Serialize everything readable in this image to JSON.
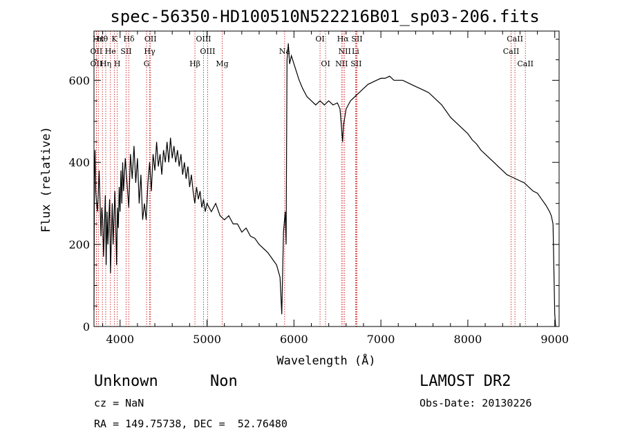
{
  "chart_data": {
    "type": "line",
    "title": "spec-56350-HD100510N522216B01_sp03-206.fits",
    "xlabel": "Wavelength (Å)",
    "ylabel": "Flux (relative)",
    "xlim": [
      3700,
      9050
    ],
    "ylim": [
      0,
      720
    ],
    "xticks": [
      4000,
      5000,
      6000,
      7000,
      8000,
      9000
    ],
    "yticks": [
      0,
      200,
      400,
      600
    ],
    "grid": false,
    "series": [
      {
        "points": [
          [
            3700,
            40
          ],
          [
            3705,
            360
          ],
          [
            3712,
            430
          ],
          [
            3720,
            330
          ],
          [
            3730,
            300
          ],
          [
            3740,
            280
          ],
          [
            3750,
            330
          ],
          [
            3760,
            380
          ],
          [
            3770,
            300
          ],
          [
            3780,
            220
          ],
          [
            3790,
            290
          ],
          [
            3800,
            260
          ],
          [
            3810,
            170
          ],
          [
            3820,
            240
          ],
          [
            3830,
            320
          ],
          [
            3840,
            150
          ],
          [
            3850,
            280
          ],
          [
            3860,
            200
          ],
          [
            3870,
            260
          ],
          [
            3880,
            310
          ],
          [
            3890,
            130
          ],
          [
            3900,
            220
          ],
          [
            3910,
            300
          ],
          [
            3920,
            200
          ],
          [
            3930,
            260
          ],
          [
            3940,
            330
          ],
          [
            3950,
            250
          ],
          [
            3960,
            150
          ],
          [
            3970,
            290
          ],
          [
            3980,
            240
          ],
          [
            3990,
            340
          ],
          [
            4000,
            280
          ],
          [
            4010,
            380
          ],
          [
            4020,
            300
          ],
          [
            4030,
            400
          ],
          [
            4040,
            330
          ],
          [
            4060,
            410
          ],
          [
            4080,
            350
          ],
          [
            4100,
            290
          ],
          [
            4120,
            420
          ],
          [
            4140,
            360
          ],
          [
            4160,
            440
          ],
          [
            4180,
            350
          ],
          [
            4200,
            410
          ],
          [
            4220,
            300
          ],
          [
            4240,
            370
          ],
          [
            4260,
            260
          ],
          [
            4280,
            300
          ],
          [
            4300,
            260
          ],
          [
            4320,
            350
          ],
          [
            4340,
            400
          ],
          [
            4360,
            330
          ],
          [
            4380,
            420
          ],
          [
            4400,
            380
          ],
          [
            4420,
            450
          ],
          [
            4440,
            390
          ],
          [
            4460,
            420
          ],
          [
            4480,
            370
          ],
          [
            4500,
            430
          ],
          [
            4520,
            400
          ],
          [
            4540,
            450
          ],
          [
            4560,
            400
          ],
          [
            4580,
            460
          ],
          [
            4600,
            410
          ],
          [
            4620,
            440
          ],
          [
            4640,
            400
          ],
          [
            4660,
            430
          ],
          [
            4680,
            390
          ],
          [
            4700,
            420
          ],
          [
            4720,
            370
          ],
          [
            4740,
            400
          ],
          [
            4760,
            360
          ],
          [
            4780,
            390
          ],
          [
            4800,
            340
          ],
          [
            4820,
            370
          ],
          [
            4840,
            330
          ],
          [
            4860,
            300
          ],
          [
            4880,
            340
          ],
          [
            4900,
            310
          ],
          [
            4920,
            330
          ],
          [
            4940,
            290
          ],
          [
            4960,
            310
          ],
          [
            4980,
            280
          ],
          [
            5000,
            300
          ],
          [
            5050,
            280
          ],
          [
            5100,
            300
          ],
          [
            5150,
            270
          ],
          [
            5200,
            260
          ],
          [
            5250,
            270
          ],
          [
            5300,
            250
          ],
          [
            5350,
            250
          ],
          [
            5400,
            230
          ],
          [
            5450,
            240
          ],
          [
            5500,
            220
          ],
          [
            5550,
            215
          ],
          [
            5600,
            200
          ],
          [
            5650,
            190
          ],
          [
            5700,
            180
          ],
          [
            5750,
            165
          ],
          [
            5800,
            150
          ],
          [
            5840,
            120
          ],
          [
            5860,
            30
          ],
          [
            5880,
            230
          ],
          [
            5900,
            280
          ],
          [
            5910,
            200
          ],
          [
            5920,
            650
          ],
          [
            5935,
            690
          ],
          [
            5950,
            640
          ],
          [
            5970,
            660
          ],
          [
            6000,
            640
          ],
          [
            6030,
            620
          ],
          [
            6060,
            600
          ],
          [
            6100,
            580
          ],
          [
            6150,
            560
          ],
          [
            6200,
            550
          ],
          [
            6250,
            540
          ],
          [
            6300,
            550
          ],
          [
            6350,
            540
          ],
          [
            6400,
            550
          ],
          [
            6450,
            540
          ],
          [
            6500,
            545
          ],
          [
            6530,
            530
          ],
          [
            6560,
            450
          ],
          [
            6570,
            490
          ],
          [
            6600,
            530
          ],
          [
            6650,
            550
          ],
          [
            6700,
            560
          ],
          [
            6750,
            570
          ],
          [
            6800,
            580
          ],
          [
            6850,
            590
          ],
          [
            6900,
            595
          ],
          [
            6950,
            600
          ],
          [
            7000,
            605
          ],
          [
            7050,
            605
          ],
          [
            7100,
            610
          ],
          [
            7150,
            600
          ],
          [
            7200,
            600
          ],
          [
            7250,
            600
          ],
          [
            7300,
            595
          ],
          [
            7350,
            590
          ],
          [
            7400,
            585
          ],
          [
            7450,
            580
          ],
          [
            7500,
            575
          ],
          [
            7550,
            570
          ],
          [
            7600,
            560
          ],
          [
            7650,
            550
          ],
          [
            7700,
            540
          ],
          [
            7750,
            525
          ],
          [
            7800,
            510
          ],
          [
            7850,
            500
          ],
          [
            7900,
            490
          ],
          [
            7950,
            480
          ],
          [
            8000,
            470
          ],
          [
            8050,
            455
          ],
          [
            8100,
            445
          ],
          [
            8150,
            430
          ],
          [
            8200,
            420
          ],
          [
            8250,
            410
          ],
          [
            8300,
            400
          ],
          [
            8350,
            390
          ],
          [
            8400,
            380
          ],
          [
            8450,
            370
          ],
          [
            8500,
            365
          ],
          [
            8550,
            360
          ],
          [
            8600,
            355
          ],
          [
            8650,
            350
          ],
          [
            8700,
            340
          ],
          [
            8750,
            330
          ],
          [
            8800,
            325
          ],
          [
            8850,
            310
          ],
          [
            8900,
            295
          ],
          [
            8940,
            280
          ],
          [
            8960,
            270
          ],
          [
            8980,
            250
          ],
          [
            9000,
            30
          ],
          [
            9010,
            0
          ]
        ]
      }
    ],
    "spectral_lines": [
      {
        "label": "Hθ",
        "wl": 3797,
        "row": 0
      },
      {
        "label": "Hκ",
        "wl": 3750,
        "row": 0
      },
      {
        "label": "K",
        "wl": 3934,
        "row": 0
      },
      {
        "label": "Hδ",
        "wl": 4102,
        "row": 0
      },
      {
        "label": "OII",
        "wl": 4350,
        "row": 0
      },
      {
        "label": "OIII",
        "wl": 4960,
        "row": 0
      },
      {
        "label": "OI",
        "wl": 6300,
        "row": 0
      },
      {
        "label": "Hα",
        "wl": 6563,
        "row": 0
      },
      {
        "label": "SII",
        "wl": 6725,
        "row": 0
      },
      {
        "label": "CaII",
        "wl": 8542,
        "row": 0
      },
      {
        "label": "OII",
        "wl": 3727,
        "row": 1
      },
      {
        "label": "He",
        "wl": 3889,
        "row": 1
      },
      {
        "label": "SII",
        "wl": 4070,
        "row": 1
      },
      {
        "label": "Hγ",
        "wl": 4340,
        "row": 1
      },
      {
        "label": "OIII",
        "wl": 5007,
        "row": 1
      },
      {
        "label": "Na",
        "wl": 5893,
        "row": 1
      },
      {
        "label": "NII",
        "wl": 6583,
        "row": 1
      },
      {
        "label": "Li",
        "wl": 6708,
        "row": 1
      },
      {
        "label": "CaII",
        "wl": 8498,
        "row": 1
      },
      {
        "label": "OII",
        "wl": 3727,
        "row": 2
      },
      {
        "label": "Hη",
        "wl": 3835,
        "row": 2
      },
      {
        "label": "H",
        "wl": 3968,
        "row": 2
      },
      {
        "label": "G",
        "wl": 4305,
        "row": 2
      },
      {
        "label": "Hβ",
        "wl": 4861,
        "row": 2
      },
      {
        "label": "Mg",
        "wl": 5175,
        "row": 2
      },
      {
        "label": "OI",
        "wl": 6364,
        "row": 2
      },
      {
        "label": "NII",
        "wl": 6548,
        "row": 2
      },
      {
        "label": "SII",
        "wl": 6716,
        "row": 2
      },
      {
        "label": "CaII",
        "wl": 8662,
        "row": 2
      }
    ]
  },
  "footer": {
    "object_class": "Unknown",
    "subclass": "Non",
    "survey": "LAMOST DR2",
    "cz": "cz = NaN",
    "obs_date": "Obs-Date: 20130226",
    "coords": "RA = 149.75738, DEC =  52.76480"
  }
}
